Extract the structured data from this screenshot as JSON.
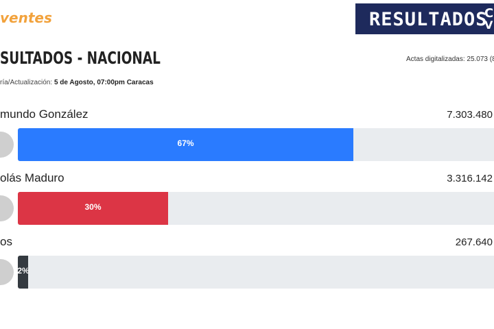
{
  "header": {
    "logo": "ventes",
    "badge": "RESULTADOS",
    "badge_logo": [
      "C",
      "V"
    ]
  },
  "title": "SULTADOS - NACIONAL",
  "actas": "Actas digitalizadas: 25.073 (8",
  "update_label": "ría/Actualización:",
  "update_value": "5 de Agosto, 07:00pm Caracas",
  "candidates": [
    {
      "name": "mundo González",
      "votes": "7.303.480",
      "percent": 67,
      "percent_label": "67%",
      "color": "#2a7bff"
    },
    {
      "name": "olás Maduro",
      "votes": "3.316.142",
      "percent": 30,
      "percent_label": "30%",
      "color": "#dc3545"
    },
    {
      "name": "os",
      "votes": "267.640",
      "percent": 2,
      "percent_label": "2%",
      "color": "#343a40"
    }
  ],
  "scale_max": 100
}
